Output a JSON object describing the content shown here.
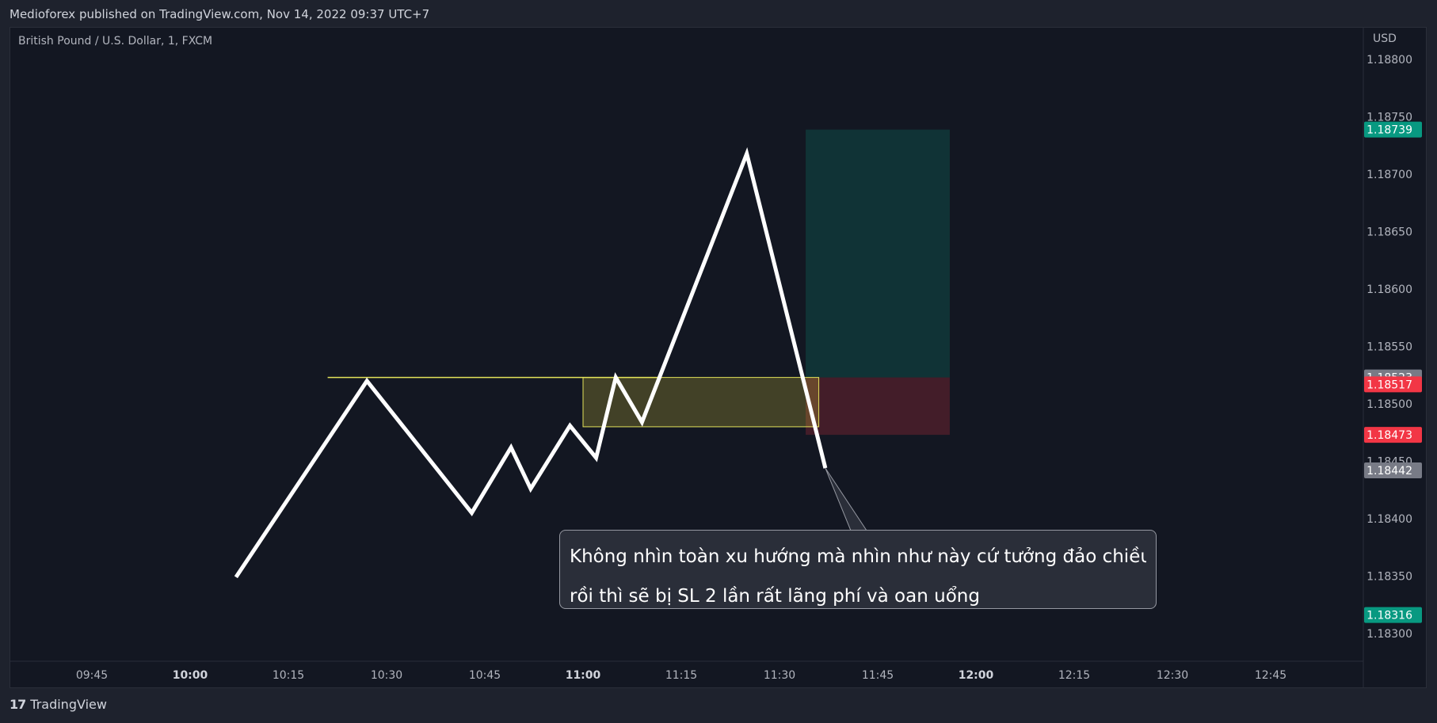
{
  "header": {
    "published": "Medioforex published on TradingView.com, Nov 14, 2022 09:37 UTC+7"
  },
  "chart_data": {
    "type": "line",
    "symbol_label": "British Pound / U.S. Dollar, 1, FXCM",
    "currency": "USD",
    "x_ticks": [
      {
        "label": "09:45",
        "bold": false
      },
      {
        "label": "10:00",
        "bold": true
      },
      {
        "label": "10:15",
        "bold": false
      },
      {
        "label": "10:30",
        "bold": false
      },
      {
        "label": "10:45",
        "bold": false
      },
      {
        "label": "11:00",
        "bold": true
      },
      {
        "label": "11:15",
        "bold": false
      },
      {
        "label": "11:30",
        "bold": false
      },
      {
        "label": "11:45",
        "bold": false
      },
      {
        "label": "12:00",
        "bold": true
      },
      {
        "label": "12:15",
        "bold": false
      },
      {
        "label": "12:30",
        "bold": false
      },
      {
        "label": "12:45",
        "bold": false
      }
    ],
    "y_ticks": [
      "1.18800",
      "1.18750",
      "1.18700",
      "1.18650",
      "1.18600",
      "1.18550",
      "1.18500",
      "1.18450",
      "1.18400",
      "1.18350",
      "1.18300"
    ],
    "ylim": [
      1.18295,
      1.18805
    ],
    "series": [
      {
        "color": "#ffffff",
        "points": [
          [
            "10:07",
            1.18349
          ],
          [
            "10:27",
            1.1852
          ],
          [
            "10:43",
            1.18405
          ],
          [
            "10:49",
            1.18462
          ],
          [
            "10:52",
            1.18426
          ],
          [
            "10:58",
            1.18481
          ],
          [
            "11:02",
            1.18453
          ],
          [
            "11:05",
            1.18523
          ],
          [
            "11:09",
            1.18484
          ],
          [
            "11:25",
            1.18718
          ],
          [
            "11:37",
            1.18444
          ]
        ]
      }
    ],
    "horizontal_line": {
      "price": 1.18523,
      "from": "10:21",
      "to": "11:12",
      "color": "#e3e35a"
    },
    "zone_box": {
      "from": "11:00",
      "to": "11:36",
      "top": 1.18523,
      "bottom": 1.1848
    },
    "position": {
      "from": "11:34",
      "to": "11:56",
      "entry": 1.18523,
      "target": 1.18739,
      "stop": 1.18473
    },
    "price_labels": [
      {
        "value": "1.18739",
        "color": "#089981"
      },
      {
        "value": "1.18523",
        "color": "#787b86"
      },
      {
        "value": "1.18517",
        "color": "#f23645"
      },
      {
        "value": "1.18473",
        "color": "#f23645"
      },
      {
        "value": "1.18442",
        "color": "#787b86"
      },
      {
        "value": "1.18316",
        "color": "#089981"
      }
    ],
    "annotation": {
      "line1": "Không nhìn toàn xu hướng mà nhìn như này cứ tưởng đảo chiều",
      "line2": "rồi  thì sẽ bị SL 2 lần rất lãng phí và oan uổng"
    }
  },
  "footer": {
    "brand": "TradingView",
    "logo": "17"
  }
}
